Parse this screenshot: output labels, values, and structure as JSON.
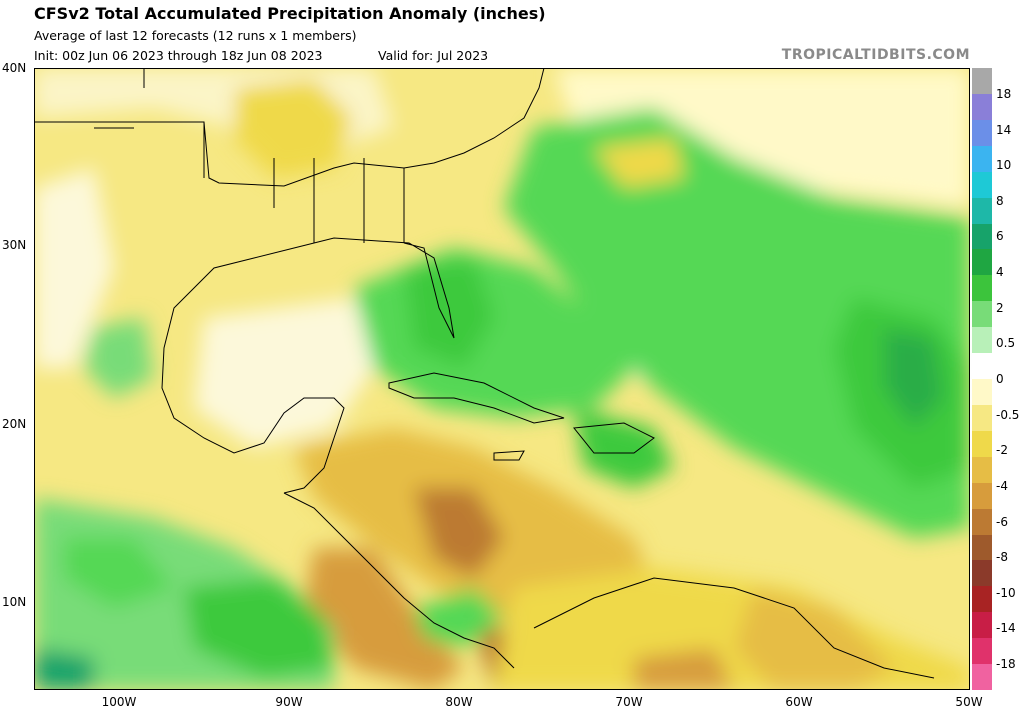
{
  "header": {
    "title": "CFSv2 Total Accumulated Precipitation Anomaly (inches)",
    "subtitle": "Average of last 12 forecasts (12 runs x 1 members)",
    "init": "Init: 00z Jun 06 2023 through 18z Jun 08 2023",
    "valid": "Valid for: Jul 2023",
    "brand": "TROPICALTIDBITS.COM"
  },
  "map": {
    "lat_labels": [
      "40N",
      "30N",
      "20N",
      "10N"
    ],
    "lon_labels": [
      "100W",
      "90W",
      "80W",
      "70W",
      "60W",
      "50W"
    ],
    "extent": {
      "lon_min": -105,
      "lon_max": -50,
      "lat_min": 5,
      "lat_max": 40
    },
    "anomaly_regions": [
      {
        "name": "atlantic-wet",
        "color": "#55d855"
      },
      {
        "name": "florida-bahamas-wet",
        "color": "#3ec93e"
      },
      {
        "name": "central-america-dry",
        "color": "#cfa24a"
      },
      {
        "name": "south-america-dry",
        "color": "#e8d04a"
      },
      {
        "name": "pacific-wet",
        "color": "#2fbf50"
      }
    ]
  },
  "colorbar": {
    "labels": [
      "18",
      "14",
      "10",
      "8",
      "6",
      "4",
      "2",
      "0.5",
      "0",
      "-0.5",
      "-2",
      "-4",
      "-6",
      "-8",
      "-10",
      "-14",
      "-18"
    ],
    "colors": [
      "#a8a8a8",
      "#8a7fd8",
      "#6b8fe8",
      "#3bb4f0",
      "#1ec9d6",
      "#1eb8a8",
      "#17a36a",
      "#1fa642",
      "#3cc43c",
      "#78dc78",
      "#b8f0b8",
      "#ffffff",
      "#fff9c8",
      "#f6e883",
      "#efd94a",
      "#e6bd45",
      "#d79c3c",
      "#bc7a33",
      "#9e5a2c",
      "#8b3a2a",
      "#a82323",
      "#c81e46",
      "#e0326b",
      "#f062a0"
    ]
  }
}
